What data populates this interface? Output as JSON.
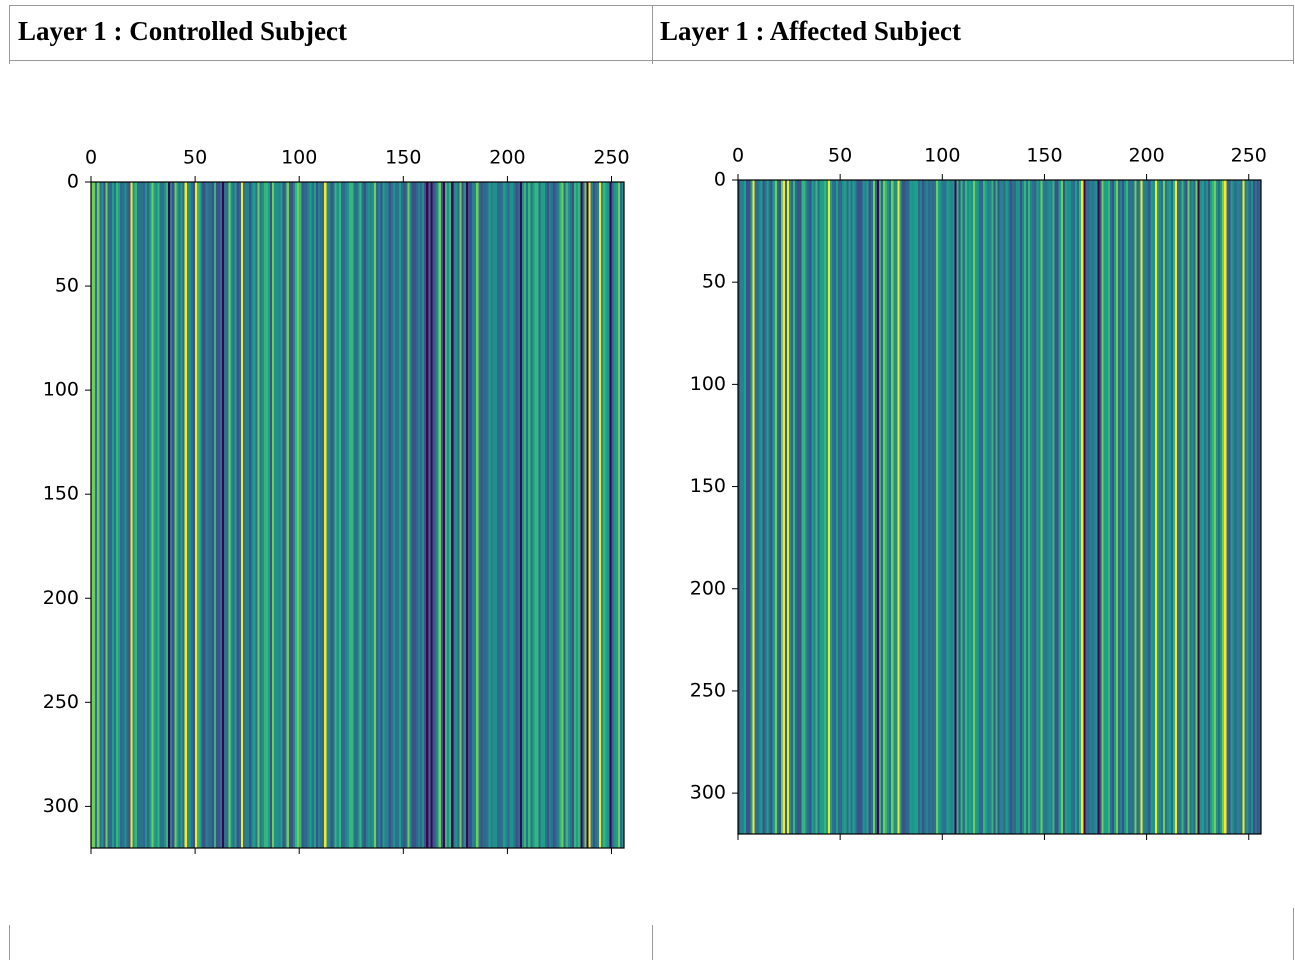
{
  "table": {
    "headers": [
      "Layer 1 : Controlled Subject",
      "Layer 1 : Affected Subject"
    ]
  },
  "chart_data": [
    {
      "type": "heatmap",
      "colormap": "viridis",
      "xlim": [
        0,
        256
      ],
      "ylim": [
        0,
        320
      ],
      "xticks": [
        0,
        50,
        100,
        150,
        200,
        250
      ],
      "yticks": [
        0,
        50,
        100,
        150,
        200,
        250,
        300
      ]
    },
    {
      "type": "heatmap",
      "colormap": "viridis",
      "xlim": [
        0,
        256
      ],
      "ylim": [
        0,
        320
      ],
      "xticks": [
        0,
        50,
        100,
        150,
        200,
        250
      ],
      "yticks": [
        0,
        50,
        100,
        150,
        200,
        250,
        300
      ]
    }
  ]
}
